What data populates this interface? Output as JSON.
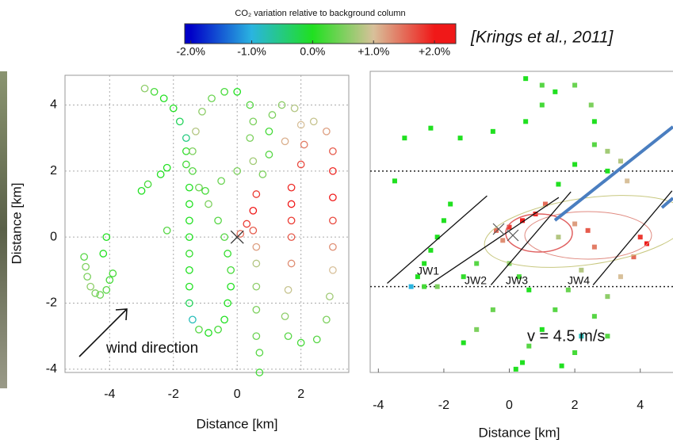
{
  "chart_data": [
    {
      "type": "colorbar",
      "title": "CO₂ variation relative to background column",
      "lim": [
        -2.1,
        2.35
      ],
      "ticks": [
        {
          "value": -2,
          "label": "-2.0%"
        },
        {
          "value": -1,
          "label": "-1.0%"
        },
        {
          "value": 0,
          "label": "0.0%"
        },
        {
          "value": 1,
          "label": "+1.0%"
        },
        {
          "value": 2,
          "label": "+2.0%"
        }
      ],
      "colors": [
        "#0000c8",
        "#2ab4e0",
        "#20e020",
        "#d8c09a",
        "#f01818"
      ],
      "citation": "[Krings et al., 2011]"
    },
    {
      "type": "scatter",
      "xlabel": "Distance [km]",
      "ylabel": "Distance [km]",
      "xlim": [
        -5.4,
        3.5
      ],
      "ylim": [
        -4.1,
        4.9
      ],
      "xticks": [
        -4,
        -2,
        0,
        2
      ],
      "yticks": [
        -4,
        -2,
        0,
        2,
        4
      ],
      "grid": true,
      "annotation": "wind direction",
      "x": [
        -4.8,
        -4.75,
        -4.7,
        -4.6,
        -4.45,
        -4.3,
        -4.1,
        -4.0,
        -3.9,
        -4.2,
        -4.1,
        -3,
        -2.8,
        -2.4,
        -2.2,
        -2.2,
        -2.9,
        -2.6,
        -2.3,
        -2,
        -1.8,
        -1.6,
        -1.6,
        -1.6,
        -1.5,
        -1.5,
        -1.5,
        -1.5,
        -1.5,
        -1.5,
        -1.5,
        -1.5,
        -1.4,
        -1.2,
        -0.9,
        -0.6,
        -0.4,
        -0.3,
        -0.2,
        -0.2,
        -0.3,
        -0.4,
        -0.6,
        -0.9,
        -1.2,
        -1.4,
        -1.4,
        -1.3,
        -1.1,
        -0.8,
        -0.4,
        0,
        0.4,
        0.5,
        0.4,
        0.1,
        0.3,
        0.5,
        0.6,
        0.5,
        0.6,
        0.6,
        0.6,
        0.6,
        0.6,
        0.7,
        0.7,
        0.8,
        1,
        1,
        1.1,
        1.4,
        1.8,
        2,
        2.1,
        2,
        1.7,
        1.7,
        1.7,
        1.7,
        1.7,
        1.6,
        1.5,
        1.6,
        2,
        2.4,
        2.8,
        3,
        3,
        3,
        3,
        3,
        3,
        2.9,
        2.8,
        2.5,
        -1,
        -0.5,
        0,
        0.5,
        1.5
      ],
      "y": [
        -0.6,
        -0.9,
        -1.2,
        -1.5,
        -1.7,
        -1.75,
        -1.6,
        -1.3,
        -1.1,
        -0.5,
        0,
        1.4,
        1.6,
        1.9,
        2.1,
        0.2,
        4.5,
        4.4,
        4.2,
        3.9,
        3.5,
        3,
        2.6,
        2.2,
        1.5,
        1,
        0.5,
        0,
        -0.5,
        -1,
        -1.5,
        -2,
        -2.5,
        -2.8,
        -2.9,
        -2.8,
        -2.5,
        -2,
        -1.5,
        -1,
        -0.5,
        0,
        0.5,
        1,
        1.5,
        2,
        2.6,
        3.2,
        3.8,
        4.2,
        4.4,
        4.4,
        4,
        3.5,
        3,
        0.1,
        0.4,
        0.8,
        1.3,
        0.2,
        -0.3,
        -0.8,
        -1.5,
        -2.2,
        -3,
        -3.5,
        -4.1,
        1.9,
        2.5,
        3.2,
        3.7,
        4,
        3.9,
        3.4,
        2.8,
        2.2,
        1.5,
        1,
        0.5,
        0,
        -0.8,
        -1.6,
        -2.4,
        -3,
        -3.2,
        3.5,
        3.2,
        2.6,
        2,
        1.2,
        0.5,
        -0.3,
        -1,
        -1.8,
        -2.5,
        -3.1,
        1.4,
        1.7,
        2,
        2.3,
        2.9
      ],
      "values": [
        0.3,
        0.5,
        0.5,
        0.6,
        0.5,
        0.4,
        0.3,
        0.2,
        0.2,
        0,
        0,
        0,
        0.2,
        0,
        0,
        0.3,
        0.6,
        0.2,
        0,
        0,
        -0.3,
        -0.5,
        0.1,
        0.2,
        0,
        0,
        0,
        0,
        0.1,
        0,
        0,
        -0.3,
        -0.8,
        0.3,
        0,
        0.2,
        0,
        0,
        0,
        0.2,
        0.1,
        0.3,
        0.3,
        0.5,
        0.4,
        0.3,
        0.5,
        0.8,
        0.6,
        0.4,
        0.2,
        0,
        0.3,
        0.5,
        0.5,
        1.5,
        1.8,
        2,
        1.8,
        1.6,
        1.2,
        0.8,
        0.6,
        0.5,
        0.4,
        0.3,
        0.2,
        0.5,
        0.3,
        0.2,
        0.5,
        0.6,
        0.8,
        1,
        1.4,
        1.7,
        1.9,
        2,
        1.8,
        1.6,
        1.3,
        0.9,
        0.6,
        0.3,
        0.2,
        0.9,
        1.2,
        1.6,
        1.9,
        2,
        1.7,
        1.3,
        1,
        0.7,
        0.5,
        0.3,
        0.2,
        0.4,
        0.5,
        0.7,
        1.1
      ]
    },
    {
      "type": "pixel",
      "xlabel": "Distance [km]",
      "xlim": [
        -4.25,
        5
      ],
      "ylim": [
        -4.1,
        4.9
      ],
      "xticks": [
        -4,
        -2,
        0,
        2,
        4
      ],
      "hlines": [
        2,
        -1.5
      ],
      "x": [
        -3.5,
        -3.2,
        -2.4,
        -1.5,
        -0.5,
        0.5,
        1,
        1.4,
        1,
        0.5,
        2,
        2.5,
        2.6,
        2.6,
        3,
        3.4,
        3.6,
        3,
        2,
        1.5,
        -3,
        -2.8,
        -2.6,
        -2.4,
        -2.2,
        -2,
        -1.8,
        -2.6,
        -2.2,
        -0.4,
        -0.2,
        0,
        0.4,
        0.8,
        1.1,
        -1,
        -1.4,
        0,
        0.3,
        0.6,
        1.5,
        2,
        2.4,
        2.6,
        2.2,
        1.8,
        1.4,
        1,
        0.6,
        0.4,
        0.2,
        4,
        4.2,
        3.8,
        3.4,
        3,
        2.6,
        2.2,
        2,
        1.6,
        3,
        -0.5,
        -1,
        -1.4
      ],
      "y": [
        1.7,
        3,
        3.3,
        3,
        3.2,
        3.5,
        4,
        4.4,
        4.6,
        4.8,
        4.6,
        4,
        3.5,
        2.8,
        2.6,
        2.3,
        1.7,
        2,
        2.2,
        1.6,
        -1.5,
        -1.2,
        -0.8,
        -0.4,
        0,
        0.5,
        1,
        -1.5,
        -1.5,
        0.2,
        -0.1,
        0.3,
        0.5,
        0.7,
        1,
        -0.8,
        -1.2,
        -0.8,
        -1.2,
        -1.6,
        0,
        0.4,
        0.2,
        -0.3,
        -1,
        -1.6,
        -2.2,
        -2.8,
        -3.3,
        -3.8,
        -4,
        0,
        -0.2,
        -0.6,
        -1.2,
        -1.8,
        -2.4,
        -3,
        -3.5,
        -3.9,
        -3,
        -2.2,
        -2.8,
        -3.2
      ],
      "values": [
        0,
        0,
        0,
        0,
        0,
        0,
        0.2,
        0,
        0.3,
        0,
        0.4,
        0.5,
        0,
        0.3,
        0.7,
        0.8,
        1,
        0,
        0,
        0,
        -1,
        0,
        0,
        0,
        0,
        0,
        0,
        0.2,
        0.5,
        1.5,
        1.3,
        1.8,
        2,
        1.9,
        1.5,
        0.3,
        0.1,
        0.5,
        0.2,
        0,
        0.8,
        1.2,
        1.6,
        1.4,
        0.8,
        0.4,
        0.3,
        0,
        0.3,
        0,
        0,
        1.8,
        2,
        1.5,
        1,
        0.6,
        0.3,
        -0.8,
        0.2,
        0,
        0.3,
        0.4,
        0.5,
        0
      ],
      "segments": [
        [
          -3.73,
          -1.4,
          -0.68,
          1.25
        ],
        [
          -2.46,
          -1.45,
          1.51,
          1.2
        ],
        [
          -0.56,
          -1.45,
          1.88,
          1.37
        ],
        [
          2.56,
          -1.45,
          4.97,
          1.4
        ]
      ],
      "segment_labels": [
        "JW1",
        "JW2",
        "JW3",
        "JW4"
      ],
      "annotation": "v = 4.5 m/s"
    }
  ]
}
